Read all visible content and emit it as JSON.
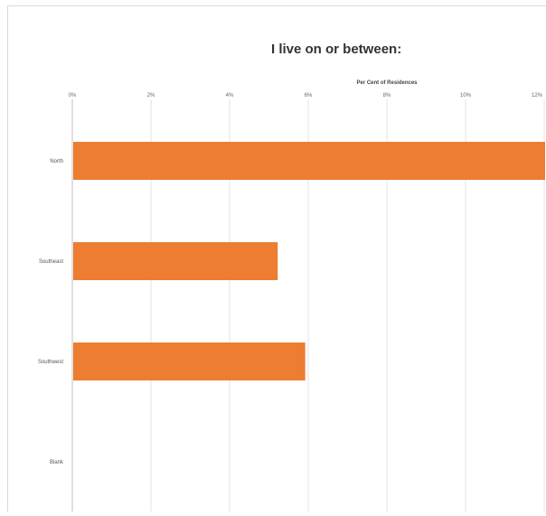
{
  "chart_data": {
    "type": "bar",
    "orientation": "horizontal",
    "title": "I live on or between:",
    "xlabel": "Per Cent of Residences",
    "ylabel": "",
    "xlim": [
      0,
      12
    ],
    "ticks": [
      "0%",
      "2%",
      "4%",
      "6%",
      "8%",
      "10%",
      "12%"
    ],
    "categories": [
      "North",
      "Southeast",
      "Southwest",
      "Blank"
    ],
    "values": [
      12,
      5.2,
      5.9,
      0
    ],
    "color": "#ed7d31",
    "grid": true,
    "legend": "none"
  }
}
